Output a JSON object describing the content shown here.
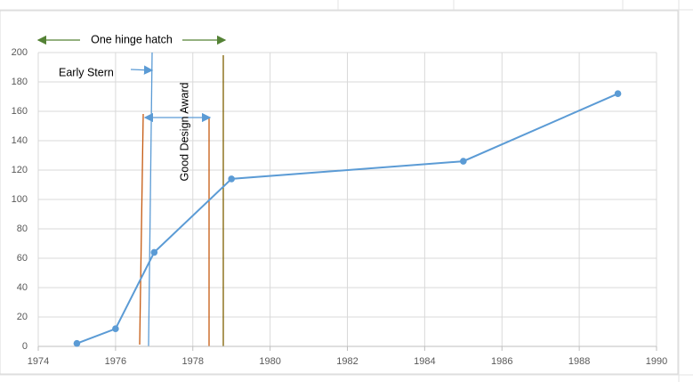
{
  "chart_data": {
    "type": "line",
    "x": [
      1975,
      1976,
      1977,
      1979,
      1985,
      1989
    ],
    "series": [
      {
        "color": "#5b9bd5",
        "values": [
          2,
          12,
          64,
          114,
          126,
          172
        ]
      }
    ],
    "xlim": [
      1974,
      1990
    ],
    "xticks": [
      1974,
      1976,
      1978,
      1980,
      1982,
      1984,
      1986,
      1988,
      1990
    ],
    "ylim": [
      0,
      200
    ],
    "yticks": [
      0,
      20,
      40,
      60,
      80,
      100,
      120,
      140,
      160,
      180,
      200
    ],
    "grid": true,
    "annotations": [
      "One hinge hatch",
      "Early Stern",
      "Good Design Award"
    ]
  }
}
